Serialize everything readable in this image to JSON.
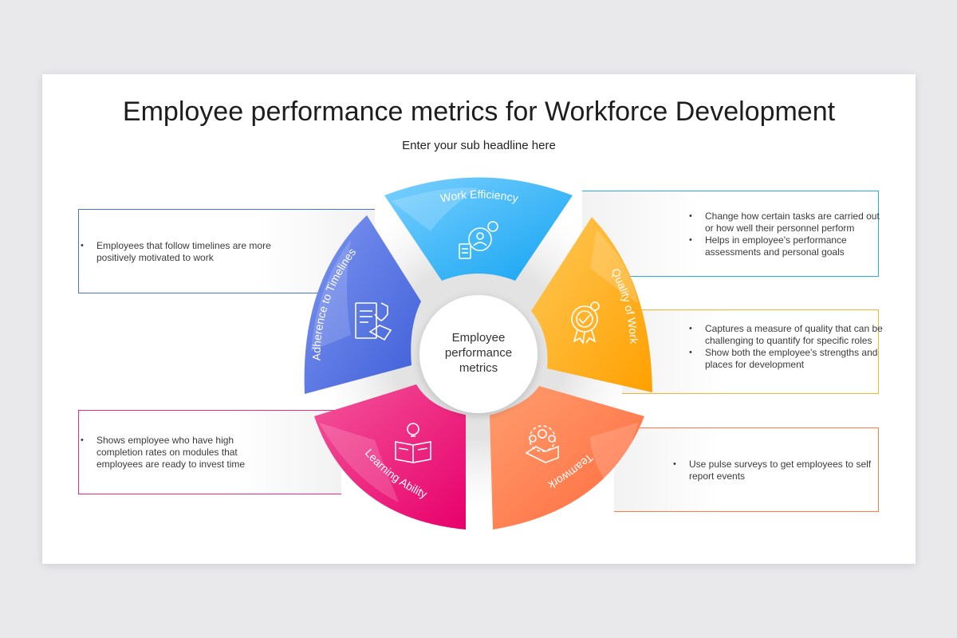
{
  "title": "Employee performance metrics for Workforce Development",
  "subtitle": "Enter your sub headline here",
  "center_label": [
    "Employee",
    "performance",
    "metrics"
  ],
  "segments": [
    {
      "label": "Work Efficiency",
      "icon": "gear-person-icon",
      "color": "#29aaf4"
    },
    {
      "label": "Quality of Work",
      "icon": "quality-badge-icon",
      "color": "#f9a825"
    },
    {
      "label": "Teamwork",
      "icon": "handshake-team-icon",
      "color": "#ff7a45"
    },
    {
      "label": "Learning Ability",
      "icon": "book-bulb-icon",
      "color": "#ec2a7b"
    },
    {
      "label": "Adherence to Timelines",
      "icon": "contract-handshake-icon",
      "color": "#4a6fe0"
    }
  ],
  "boxes": {
    "timelines": {
      "color": "#4a6fe0",
      "bullets": [
        "Employees that follow timelines are more positively motivated to work"
      ]
    },
    "efficiency": {
      "color": "#29aaf4",
      "bullets": [
        "Change how certain tasks are carried out or how well their personnel perform",
        "Helps in employee's performance assessments and personal goals"
      ]
    },
    "quality": {
      "color": "#f9b233",
      "bullets": [
        "Captures a measure of quality that can be challenging to quantify for specific roles",
        "Show both the employee's strengths and places for development"
      ]
    },
    "learning": {
      "color": "#ec2a7b",
      "bullets": [
        "Shows employee who have high completion rates on modules that employees are ready to invest time"
      ]
    },
    "teamwork": {
      "color": "#ff7a45",
      "bullets": [
        "Use pulse surveys to get employees to self report events"
      ]
    }
  }
}
